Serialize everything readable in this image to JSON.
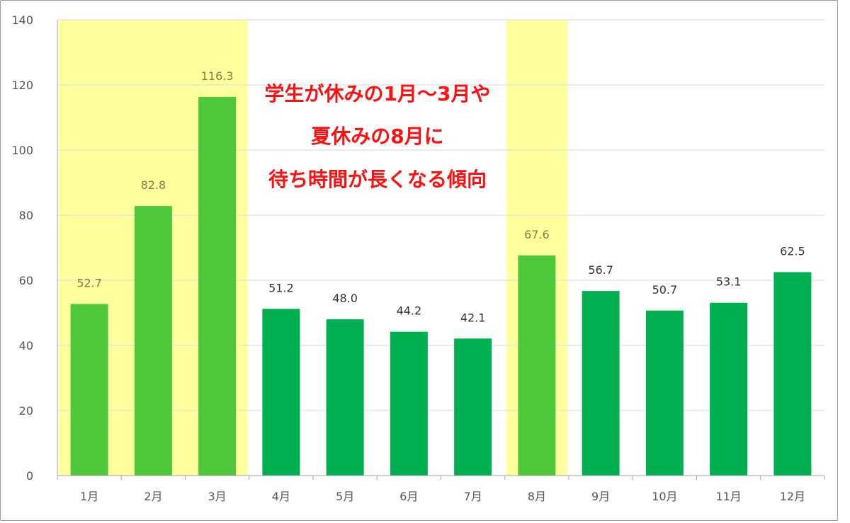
{
  "chart_data": {
    "type": "bar",
    "categories": [
      "1月",
      "2月",
      "3月",
      "4月",
      "5月",
      "6月",
      "7月",
      "8月",
      "9月",
      "10月",
      "11月",
      "12月"
    ],
    "values": [
      52.7,
      82.8,
      116.3,
      51.2,
      48.0,
      44.2,
      42.1,
      67.6,
      56.7,
      50.7,
      53.1,
      62.5
    ],
    "value_labels": [
      "52.7",
      "82.8",
      "116.3",
      "51.2",
      "48.0",
      "44.2",
      "42.1",
      "67.6",
      "56.7",
      "50.7",
      "53.1",
      "62.5"
    ],
    "highlighted_categories": [
      "1月",
      "2月",
      "3月",
      "8月"
    ],
    "ylim": [
      0,
      140
    ],
    "yticks": [
      0,
      20,
      40,
      60,
      80,
      100,
      120,
      140
    ],
    "ytick_labels": [
      "0",
      "20",
      "40",
      "60",
      "80",
      "100",
      "120",
      "140"
    ],
    "grid": true,
    "legend": "none",
    "title": "",
    "xlabel": "",
    "ylabel": "",
    "annotation_lines": [
      "学生が休みの1月～3月や",
      "夏休みの8月に",
      "待ち時間が長くなる傾向"
    ],
    "colors": {
      "bar_normal": "#00b050",
      "bar_highlight": "#4ec83a",
      "highlight_band": "#ffff9e",
      "label_normal": "#333333",
      "label_highlight": "#8a7a40",
      "annotation": "#ff1010",
      "grid": "#d9d9d9",
      "axis": "#a6a6a6"
    }
  }
}
